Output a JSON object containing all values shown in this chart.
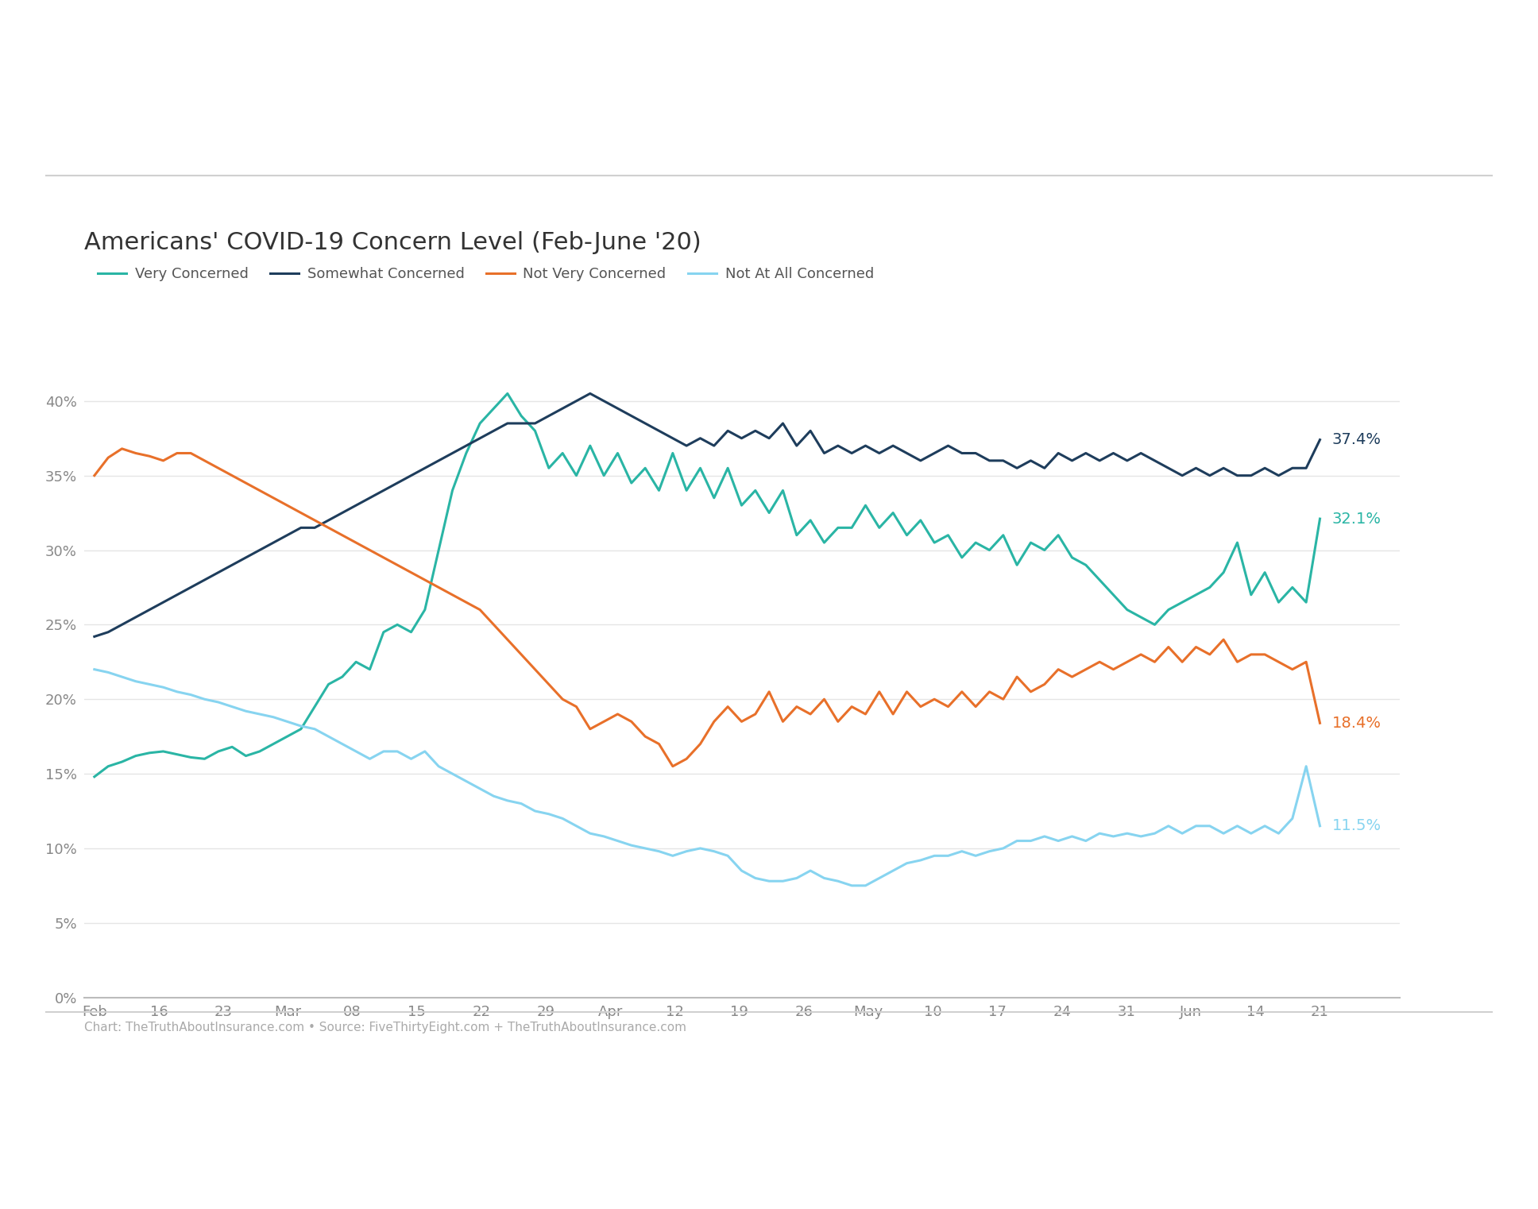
{
  "title": "Americans' COVID-19 Concern Level (Feb-June '20)",
  "source_text": "Chart: TheTruthAboutInsurance.com • Source: FiveThirtyEight.com + TheTruthAboutInsurance.com",
  "legend_labels": [
    "Very Concerned",
    "Somewhat Concerned",
    "Not Very Concerned",
    "Not At All Concerned"
  ],
  "colors": {
    "very_concerned": "#2ab5a5",
    "somewhat_concerned": "#1e3d5c",
    "not_very_concerned": "#e8702a",
    "not_at_all_concerned": "#87d4f0"
  },
  "end_labels": {
    "very_concerned": "32.1%",
    "somewhat_concerned": "37.4%",
    "not_very_concerned": "18.4%",
    "not_at_all_concerned": "11.5%"
  },
  "x_tick_labels": [
    "Feb",
    "16",
    "23",
    "Mar",
    "08",
    "15",
    "22",
    "29",
    "Apr",
    "12",
    "19",
    "26",
    "May",
    "10",
    "17",
    "24",
    "31",
    "Jun",
    "14",
    "21"
  ],
  "ylim": [
    0,
    45
  ],
  "yticks": [
    0,
    5,
    10,
    15,
    20,
    25,
    30,
    35,
    40
  ],
  "background_color": "#ffffff",
  "grid_color": "#e5e5e5",
  "very_concerned": [
    14.8,
    15.5,
    15.8,
    16.2,
    16.4,
    16.5,
    16.3,
    16.1,
    16.0,
    16.5,
    16.8,
    16.2,
    16.5,
    17.0,
    17.5,
    18.0,
    19.5,
    21.0,
    21.5,
    22.5,
    22.0,
    24.5,
    25.0,
    24.5,
    26.0,
    30.0,
    34.0,
    36.5,
    38.5,
    39.5,
    40.5,
    39.0,
    38.0,
    35.5,
    36.5,
    35.0,
    37.0,
    35.0,
    36.5,
    34.5,
    35.5,
    34.0,
    36.5,
    34.0,
    35.5,
    33.5,
    35.5,
    33.0,
    34.0,
    32.5,
    34.0,
    31.0,
    32.0,
    30.5,
    31.5,
    31.5,
    33.0,
    31.5,
    32.5,
    31.0,
    32.0,
    30.5,
    31.0,
    29.5,
    30.5,
    30.0,
    31.0,
    29.0,
    30.5,
    30.0,
    31.0,
    29.5,
    29.0,
    28.0,
    27.0,
    26.0,
    25.5,
    25.0,
    26.0,
    26.5,
    27.0,
    27.5,
    28.5,
    30.5,
    27.0,
    28.5,
    26.5,
    27.5,
    26.5,
    32.1
  ],
  "somewhat_concerned": [
    24.2,
    24.5,
    25.0,
    25.5,
    26.0,
    26.5,
    27.0,
    27.5,
    28.0,
    28.5,
    29.0,
    29.5,
    30.0,
    30.5,
    31.0,
    31.5,
    31.5,
    32.0,
    32.5,
    33.0,
    33.5,
    34.0,
    34.5,
    35.0,
    35.5,
    36.0,
    36.5,
    37.0,
    37.5,
    38.0,
    38.5,
    38.5,
    38.5,
    39.0,
    39.5,
    40.0,
    40.5,
    40.0,
    39.5,
    39.0,
    38.5,
    38.0,
    37.5,
    37.0,
    37.5,
    37.0,
    38.0,
    37.5,
    38.0,
    37.5,
    38.5,
    37.0,
    38.0,
    36.5,
    37.0,
    36.5,
    37.0,
    36.5,
    37.0,
    36.5,
    36.0,
    36.5,
    37.0,
    36.5,
    36.5,
    36.0,
    36.0,
    35.5,
    36.0,
    35.5,
    36.5,
    36.0,
    36.5,
    36.0,
    36.5,
    36.0,
    36.5,
    36.0,
    35.5,
    35.0,
    35.5,
    35.0,
    35.5,
    35.0,
    35.0,
    35.5,
    35.0,
    35.5,
    35.5,
    37.4
  ],
  "not_very_concerned": [
    35.0,
    36.2,
    36.8,
    36.5,
    36.3,
    36.0,
    36.5,
    36.5,
    36.0,
    35.5,
    35.0,
    34.5,
    34.0,
    33.5,
    33.0,
    32.5,
    32.0,
    31.5,
    31.0,
    30.5,
    30.0,
    29.5,
    29.0,
    28.5,
    28.0,
    27.5,
    27.0,
    26.5,
    26.0,
    25.0,
    24.0,
    23.0,
    22.0,
    21.0,
    20.0,
    19.5,
    18.0,
    18.5,
    19.0,
    18.5,
    17.5,
    17.0,
    15.5,
    16.0,
    17.0,
    18.5,
    19.5,
    18.5,
    19.0,
    20.5,
    18.5,
    19.5,
    19.0,
    20.0,
    18.5,
    19.5,
    19.0,
    20.5,
    19.0,
    20.5,
    19.5,
    20.0,
    19.5,
    20.5,
    19.5,
    20.5,
    20.0,
    21.5,
    20.5,
    21.0,
    22.0,
    21.5,
    22.0,
    22.5,
    22.0,
    22.5,
    23.0,
    22.5,
    23.5,
    22.5,
    23.5,
    23.0,
    24.0,
    22.5,
    23.0,
    23.0,
    22.5,
    22.0,
    22.5,
    18.4
  ],
  "not_at_all_concerned": [
    22.0,
    21.8,
    21.5,
    21.2,
    21.0,
    20.8,
    20.5,
    20.3,
    20.0,
    19.8,
    19.5,
    19.2,
    19.0,
    18.8,
    18.5,
    18.2,
    18.0,
    17.5,
    17.0,
    16.5,
    16.0,
    16.5,
    16.5,
    16.0,
    16.5,
    15.5,
    15.0,
    14.5,
    14.0,
    13.5,
    13.2,
    13.0,
    12.5,
    12.3,
    12.0,
    11.5,
    11.0,
    10.8,
    10.5,
    10.2,
    10.0,
    9.8,
    9.5,
    9.8,
    10.0,
    9.8,
    9.5,
    8.5,
    8.0,
    7.8,
    7.8,
    8.0,
    8.5,
    8.0,
    7.8,
    7.5,
    7.5,
    8.0,
    8.5,
    9.0,
    9.2,
    9.5,
    9.5,
    9.8,
    9.5,
    9.8,
    10.0,
    10.5,
    10.5,
    10.8,
    10.5,
    10.8,
    10.5,
    11.0,
    10.8,
    11.0,
    10.8,
    11.0,
    11.5,
    11.0,
    11.5,
    11.5,
    11.0,
    11.5,
    11.0,
    11.5,
    11.0,
    12.0,
    15.5,
    11.5
  ]
}
